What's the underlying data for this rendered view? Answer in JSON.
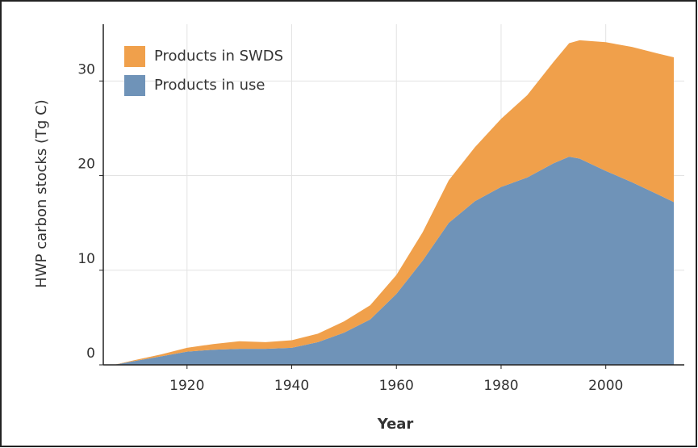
{
  "chart_data": {
    "type": "stacked-area",
    "x_label": "Year",
    "y_label": "HWP carbon stocks (Tg C)",
    "x": [
      1906,
      1910,
      1915,
      1920,
      1925,
      1930,
      1935,
      1940,
      1945,
      1950,
      1955,
      1960,
      1965,
      1970,
      1975,
      1980,
      1985,
      1990,
      1993,
      1995,
      2000,
      2005,
      2010,
      2013
    ],
    "series": [
      {
        "name": "Products in use",
        "color": "#6f93b8",
        "values": [
          0,
          0.4,
          0.9,
          1.4,
          1.6,
          1.7,
          1.7,
          1.8,
          2.4,
          3.4,
          4.8,
          7.5,
          11,
          15,
          17.3,
          18.8,
          19.8,
          21.3,
          22,
          21.8,
          20.5,
          19.3,
          18,
          17.2
        ]
      },
      {
        "name": "Products in SWDS",
        "color": "#f0a04b",
        "values": [
          0,
          0.1,
          0.2,
          0.4,
          0.6,
          0.8,
          0.7,
          0.8,
          0.9,
          1.2,
          1.5,
          2.0,
          3.0,
          4.5,
          5.7,
          7.2,
          8.7,
          10.7,
          12,
          12.5,
          13.6,
          14.3,
          14.9,
          15.3
        ]
      }
    ],
    "xlim": [
      1904,
      2015
    ],
    "xticks": [
      1920,
      1940,
      1960,
      1980,
      2000
    ],
    "ylim": [
      0,
      36
    ],
    "yticks": [
      0,
      10,
      20,
      30
    ],
    "grid": true,
    "legend": "top-left"
  }
}
